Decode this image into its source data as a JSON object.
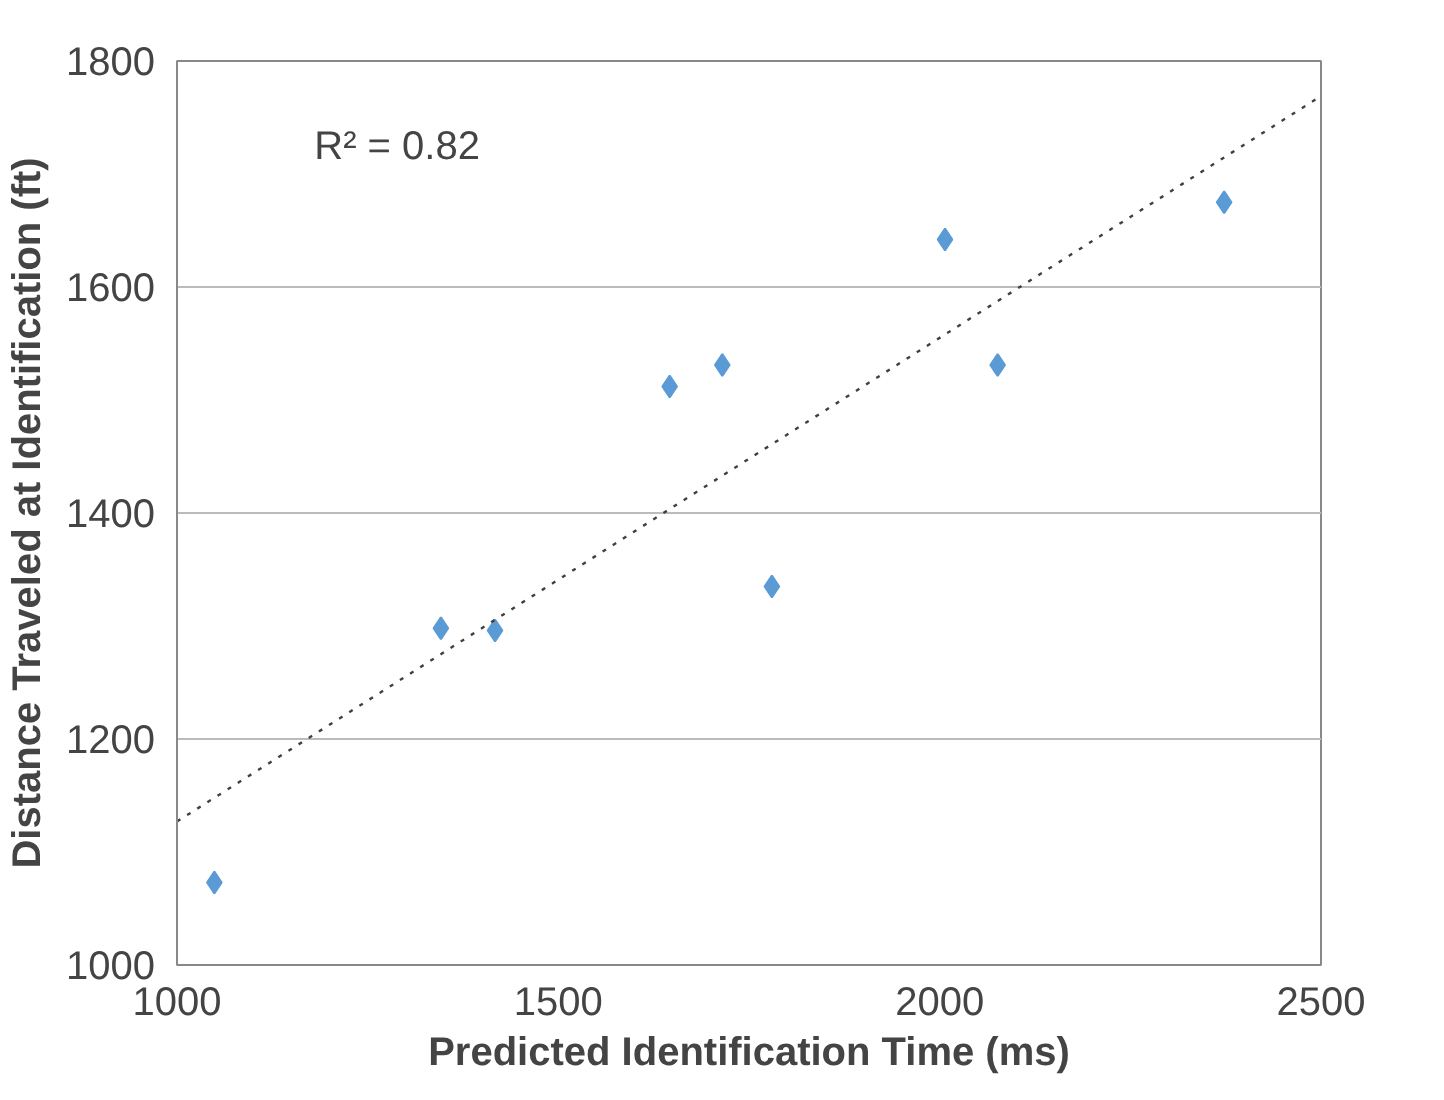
{
  "chart_data": {
    "type": "scatter",
    "xlabel": "Predicted Identification Time (ms)",
    "ylabel": "Distance Traveled at Identification (ft)",
    "xlim": [
      1000,
      2500
    ],
    "xticks": [
      1000,
      1500,
      2000,
      2500
    ],
    "ylim": [
      1000,
      1800
    ],
    "yticks": [
      1000,
      1200,
      1400,
      1600,
      1800
    ],
    "grid": "y",
    "marker": "diamond",
    "annotations": [
      "R² = 0.82"
    ],
    "series": [
      {
        "color": "#5b9bd5",
        "x": [
          1049,
          1346,
          1417,
          1646,
          1715,
          1780,
          2007,
          2076,
          2373
        ],
        "values": [
          1073,
          1298,
          1296,
          1512,
          1531,
          1335,
          1642,
          1531,
          1675
        ]
      },
      {
        "type": "line",
        "color": "#404040",
        "line_style": "dotted",
        "marker": "none",
        "x": [
          1000,
          2500
        ],
        "values": [
          1127,
          1769
        ]
      }
    ]
  }
}
